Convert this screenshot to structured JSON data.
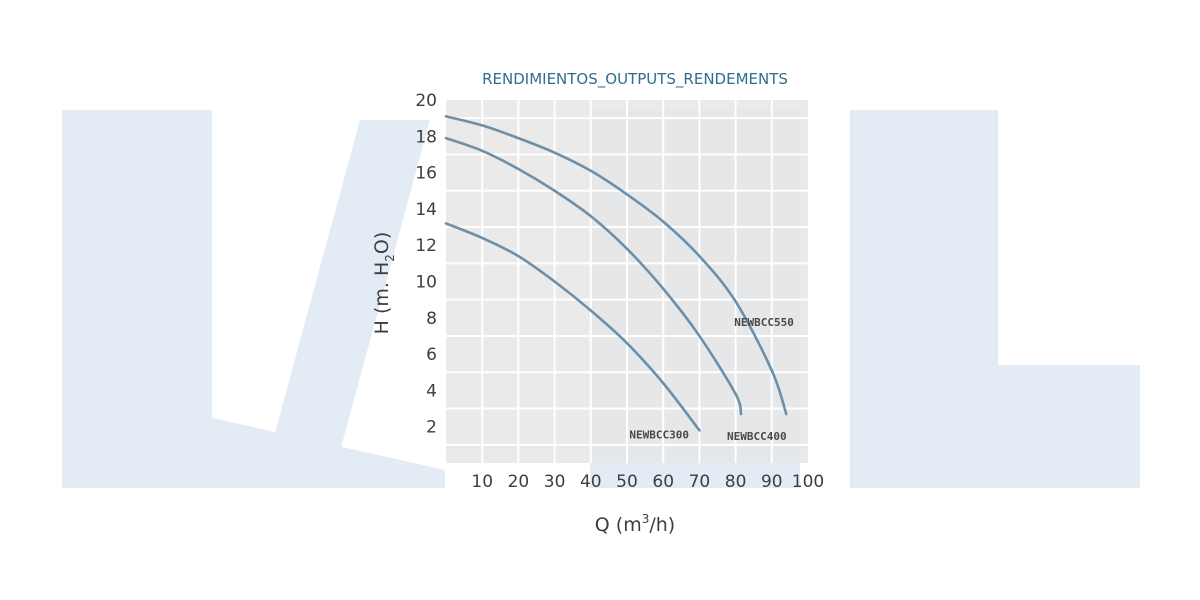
{
  "colors": {
    "background": "#ffffff",
    "plot_background": "#e6e6e6",
    "grid": "#ffffff",
    "curve": "#6f8fa6",
    "title": "#2e6f8e",
    "text": "#3e3e40",
    "watermark": "#e3ebf5"
  },
  "watermark": {
    "text": "IML"
  },
  "chart_data": {
    "type": "line",
    "title": "RENDIMIENTOS_OUTPUTS_RENDEMENTS",
    "xlabel": {
      "pre": "Q (m",
      "sup": "3",
      "post": "/h)"
    },
    "ylabel": {
      "pre": "H (m. H",
      "sub": "2",
      "post": "O)"
    },
    "xlim": [
      0,
      100
    ],
    "ylim": [
      0,
      20
    ],
    "xticks": [
      10,
      20,
      30,
      40,
      50,
      60,
      70,
      80,
      90,
      100
    ],
    "yticks": [
      2,
      4,
      6,
      8,
      10,
      12,
      14,
      16,
      18,
      20
    ],
    "grid": true,
    "series": [
      {
        "name": "NEWBCC300",
        "points": [
          [
            0,
            13.2
          ],
          [
            10,
            12.4
          ],
          [
            20,
            11.4
          ],
          [
            30,
            10.0
          ],
          [
            40,
            8.4
          ],
          [
            50,
            6.6
          ],
          [
            60,
            4.4
          ],
          [
            70,
            1.8
          ]
        ]
      },
      {
        "name": "NEWBCC400",
        "points": [
          [
            0,
            17.9
          ],
          [
            10,
            17.2
          ],
          [
            20,
            16.2
          ],
          [
            30,
            15.0
          ],
          [
            40,
            13.6
          ],
          [
            50,
            11.8
          ],
          [
            60,
            9.6
          ],
          [
            70,
            7.0
          ],
          [
            80,
            3.8
          ],
          [
            81.5,
            2.7
          ]
        ]
      },
      {
        "name": "NEWBCC550",
        "points": [
          [
            0,
            19.1
          ],
          [
            10,
            18.6
          ],
          [
            20,
            17.9
          ],
          [
            30,
            17.1
          ],
          [
            40,
            16.1
          ],
          [
            50,
            14.8
          ],
          [
            60,
            13.3
          ],
          [
            70,
            11.4
          ],
          [
            80,
            8.9
          ],
          [
            90,
            5.1
          ],
          [
            94,
            2.7
          ]
        ]
      }
    ]
  }
}
